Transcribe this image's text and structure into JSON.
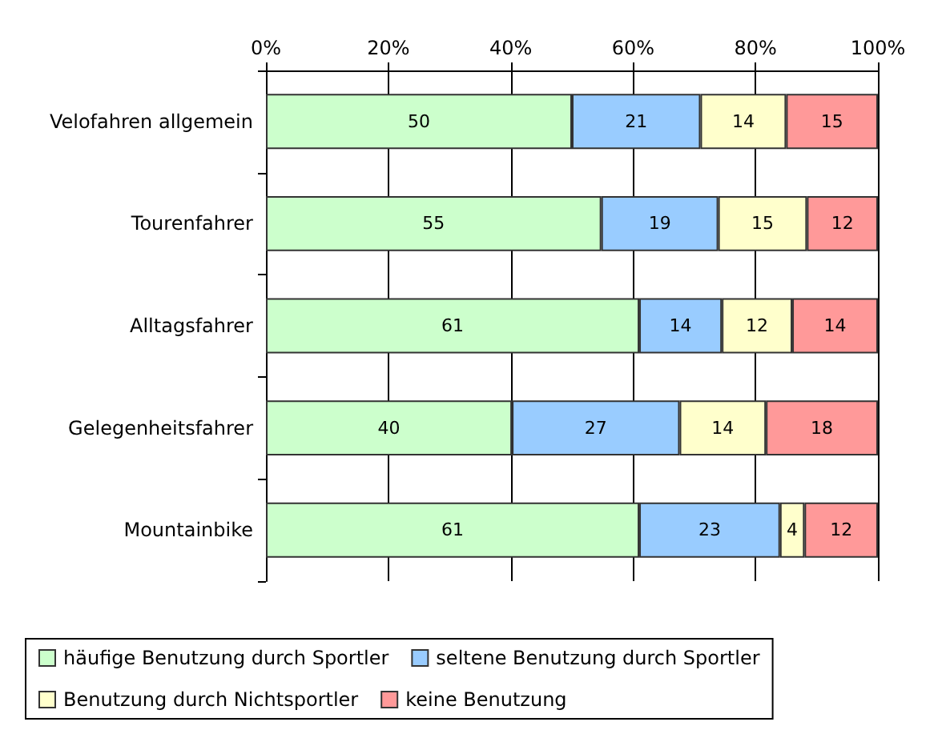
{
  "chart_data": {
    "type": "bar",
    "orientation": "horizontal",
    "stacked": true,
    "categories": [
      "Velofahren allgemein",
      "Tourenfahrer",
      "Alltagsfahrer",
      "Gelegenheitsfahrer",
      "Mountainbike"
    ],
    "series": [
      {
        "name": "häufige Benutzung durch Sportler",
        "color": "#ccffcc",
        "values": [
          50,
          54.8,
          61,
          40.2,
          61
        ],
        "value_labels": [
          "50",
          "55",
          "61",
          "40",
          "61"
        ]
      },
      {
        "name": "seltene Benutzung durch Sportler",
        "color": "#99ccff",
        "values": [
          21,
          19.1,
          13.5,
          27.4,
          23
        ],
        "value_labels": [
          "21",
          "19",
          "14",
          "27",
          "23"
        ]
      },
      {
        "name": "Benutzung durch Nichtsportler",
        "color": "#ffffcc",
        "values": [
          14,
          14.5,
          11.5,
          14.1,
          4
        ],
        "value_labels": [
          "14",
          "15",
          "12",
          "14",
          "4"
        ]
      },
      {
        "name": "keine Benutzung",
        "color": "#ff9999",
        "values": [
          15,
          11.6,
          14,
          18.3,
          12
        ],
        "value_labels": [
          "15",
          "12",
          "14",
          "18",
          "12"
        ]
      }
    ],
    "xlim": [
      0,
      100
    ],
    "xticks": [
      {
        "value": 0,
        "label": "0%"
      },
      {
        "value": 20,
        "label": "20%"
      },
      {
        "value": 40,
        "label": "40%"
      },
      {
        "value": 60,
        "label": "60%"
      },
      {
        "value": 80,
        "label": "80%"
      },
      {
        "value": 100,
        "label": "100%"
      }
    ],
    "grid": "x",
    "legend": "bottom"
  }
}
